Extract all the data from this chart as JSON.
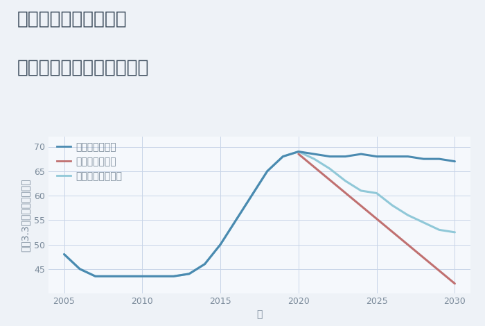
{
  "title_line1": "福岡県太宰府市高雄の",
  "title_line2": "中古マンションの価格推移",
  "xlabel": "年",
  "ylabel": "坪（3.3㎡）単価（万円）",
  "background_color": "#eef2f7",
  "plot_bg_color": "#f5f8fc",
  "grid_color": "#c8d4e8",
  "good_scenario": {
    "label": "グッドシナリオ",
    "color": "#4a8ab0",
    "x": [
      2005,
      2006,
      2007,
      2008,
      2009,
      2010,
      2011,
      2012,
      2013,
      2014,
      2015,
      2016,
      2017,
      2018,
      2019,
      2020,
      2021,
      2022,
      2023,
      2024,
      2025,
      2026,
      2027,
      2028,
      2029,
      2030
    ],
    "y": [
      48,
      45,
      43.5,
      43.5,
      43.5,
      43.5,
      43.5,
      43.5,
      44,
      46,
      50,
      55,
      60,
      65,
      68,
      69,
      68.5,
      68,
      68,
      68.5,
      68,
      68,
      68,
      67.5,
      67.5,
      67
    ]
  },
  "bad_scenario": {
    "label": "バッドシナリオ",
    "color": "#c07070",
    "x": [
      2020,
      2030
    ],
    "y": [
      68.5,
      42
    ]
  },
  "normal_scenario": {
    "label": "ノーマルシナリオ",
    "color": "#90c8d8",
    "x": [
      2005,
      2006,
      2007,
      2008,
      2009,
      2010,
      2011,
      2012,
      2013,
      2014,
      2015,
      2016,
      2017,
      2018,
      2019,
      2020,
      2021,
      2022,
      2023,
      2024,
      2025,
      2026,
      2027,
      2028,
      2029,
      2030
    ],
    "y": [
      48,
      45,
      43.5,
      43.5,
      43.5,
      43.5,
      43.5,
      43.5,
      44,
      46,
      50,
      55,
      60,
      65,
      68,
      69,
      67.5,
      65.5,
      63,
      61,
      60.5,
      58,
      56,
      54.5,
      53,
      52.5
    ]
  },
  "ylim": [
    40,
    72
  ],
  "yticks": [
    45,
    50,
    55,
    60,
    65,
    70
  ],
  "xlim": [
    2004,
    2031
  ],
  "xticks": [
    2005,
    2010,
    2015,
    2020,
    2025,
    2030
  ],
  "title_fontsize": 19,
  "axis_fontsize": 10,
  "tick_fontsize": 9,
  "legend_fontsize": 10,
  "linewidth": 2.2
}
